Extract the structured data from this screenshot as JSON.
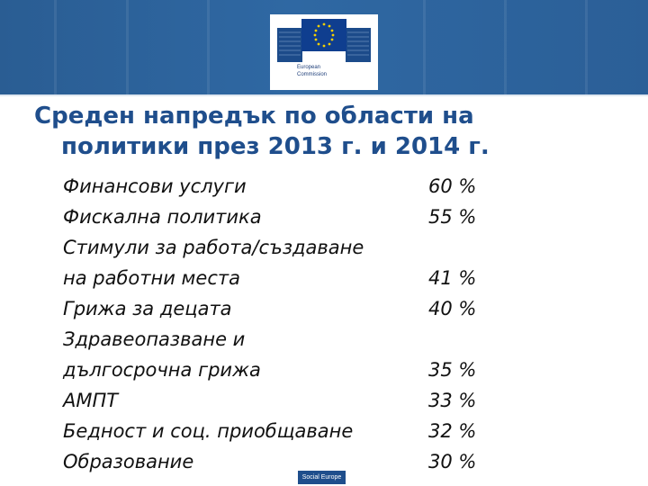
{
  "header": {
    "logo_line1": "European",
    "logo_line2": "Commission"
  },
  "title": {
    "line1": "Среден напредък по области на",
    "line2": "политики през 2013 г. и 2014 г."
  },
  "items": [
    {
      "label": "Финансови услуги",
      "value": "60 %"
    },
    {
      "label": "Фискална политика",
      "value": "55 %"
    },
    {
      "label": "Стимули за работа/създаване",
      "value": ""
    },
    {
      "label": "на работни места",
      "value": "41 %"
    },
    {
      "label": "Грижа за децата",
      "value": "40 %"
    },
    {
      "label": "Здравеопазване и",
      "value": ""
    },
    {
      "label": "дългосрочна грижа",
      "value": "35 %"
    },
    {
      "label": "АМПТ",
      "value": "33 %"
    },
    {
      "label": "Бедност и соц. приобщаване",
      "value": "32 %"
    },
    {
      "label": "Образование",
      "value": "30 %"
    }
  ],
  "footer": {
    "tag": "Social Europe"
  },
  "colors": {
    "header_bg": "#2f68a3",
    "title": "#1f4e8c"
  }
}
